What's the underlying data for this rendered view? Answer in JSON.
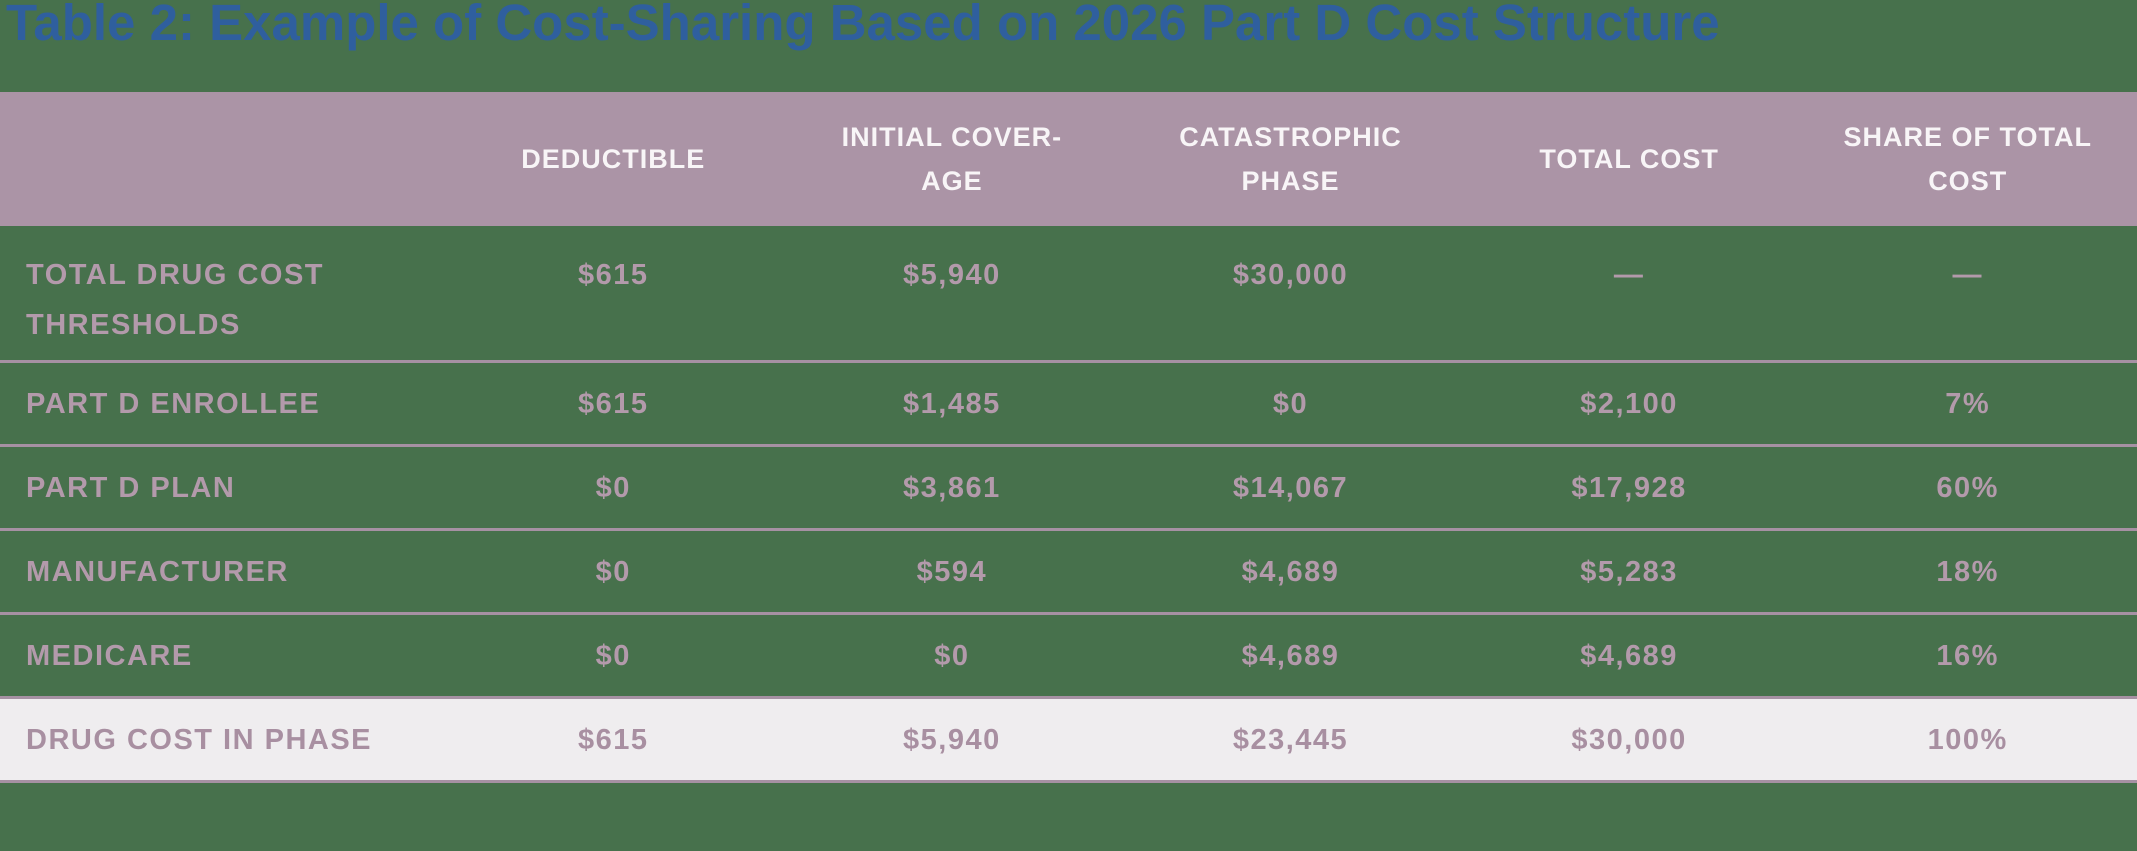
{
  "title": {
    "text": "Table 2: Example of Cost-Sharing Based on 2026 Part D Cost Structure"
  },
  "table": {
    "headers": [
      {
        "label": ""
      },
      {
        "label": "DEDUCTIBLE"
      },
      {
        "label": "INITIAL COVER-\nAGE"
      },
      {
        "label": "CATASTROPHIC\nPHASE"
      },
      {
        "label": "TOTAL COST"
      },
      {
        "label": "SHARE OF TOTAL\nCOST"
      }
    ],
    "rows": [
      {
        "label": "TOTAL DRUG COST\nTHRESHOLDS",
        "values": [
          "$615",
          "$5,940",
          "$30,000",
          "—",
          "—"
        ]
      },
      {
        "label": "PART D ENROLLEE",
        "values": [
          "$615",
          "$1,485",
          "$0",
          "$2,100",
          "7%"
        ]
      },
      {
        "label": "PART D PLAN",
        "values": [
          "$0",
          "$3,861",
          "$14,067",
          "$17,928",
          "60%"
        ]
      },
      {
        "label": "MANUFACTURER",
        "values": [
          "$0",
          "$594",
          "$4,689",
          "$5,283",
          "18%"
        ]
      },
      {
        "label": "MEDICARE",
        "values": [
          "$0",
          "$0",
          "$4,689",
          "$4,689",
          "16%"
        ]
      },
      {
        "label": "DRUG COST IN PHASE",
        "values": [
          "$615",
          "$5,940",
          "$23,445",
          "$30,000",
          "100%"
        ],
        "highlight": true
      }
    ]
  },
  "chart_data": {
    "type": "table",
    "title": "Table 2: Example of Cost-Sharing Based on 2026 Part D Cost Structure",
    "columns": [
      "",
      "DEDUCTIBLE",
      "INITIAL COVERAGE",
      "CATASTROPHIC PHASE",
      "TOTAL COST",
      "SHARE OF TOTAL COST"
    ],
    "rows": [
      [
        "TOTAL DRUG COST THRESHOLDS",
        "$615",
        "$5,940",
        "$30,000",
        "—",
        "—"
      ],
      [
        "PART D ENROLLEE",
        "$615",
        "$1,485",
        "$0",
        "$2,100",
        "7%"
      ],
      [
        "PART D PLAN",
        "$0",
        "$3,861",
        "$14,067",
        "$17,928",
        "60%"
      ],
      [
        "MANUFACTURER",
        "$0",
        "$594",
        "$4,689",
        "$5,283",
        "18%"
      ],
      [
        "MEDICARE",
        "$0",
        "$0",
        "$4,689",
        "$4,689",
        "16%"
      ],
      [
        "DRUG COST IN PHASE",
        "$615",
        "$5,940",
        "$23,445",
        "$30,000",
        "100%"
      ]
    ],
    "notes": "Last row (DRUG COST IN PHASE) is highlighted with a light background"
  },
  "colors": {
    "bg_green": "#47714c",
    "header_bg": "#ab94a6",
    "header_text": "#f8f5f7",
    "title_blue": "#2f5f9e",
    "text_mauve": "#b39aab",
    "divider": "#a691a3",
    "highlight_bg": "#efedef",
    "highlight_text": "#a88fa1"
  }
}
